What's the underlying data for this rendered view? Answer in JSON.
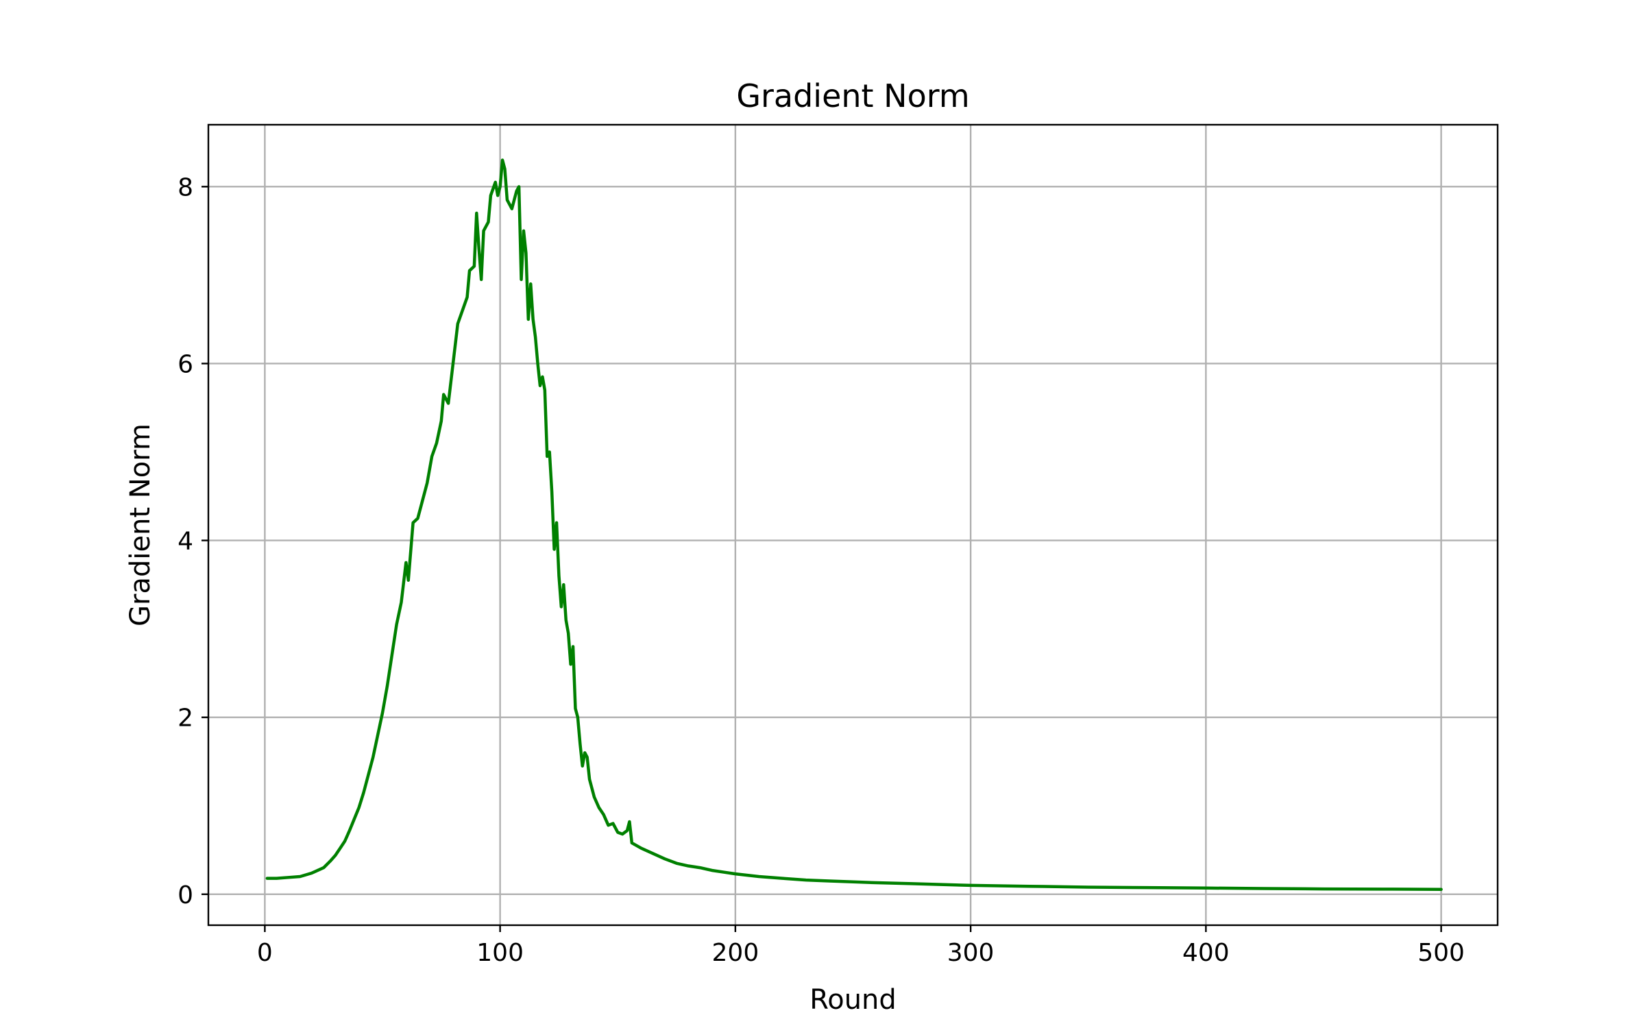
{
  "chart_data": {
    "type": "line",
    "title": "Gradient Norm",
    "xlabel": "Round",
    "ylabel": "Gradient Norm",
    "xlim": [
      -24,
      524
    ],
    "ylim": [
      -0.35,
      8.7
    ],
    "xticks": [
      0,
      100,
      200,
      300,
      400,
      500
    ],
    "yticks": [
      0,
      2,
      4,
      6,
      8
    ],
    "grid": true,
    "series": [
      {
        "color": "#008000",
        "points": [
          [
            1,
            0.18
          ],
          [
            5,
            0.18
          ],
          [
            10,
            0.19
          ],
          [
            15,
            0.2
          ],
          [
            20,
            0.24
          ],
          [
            25,
            0.3
          ],
          [
            28,
            0.38
          ],
          [
            30,
            0.44
          ],
          [
            32,
            0.52
          ],
          [
            34,
            0.6
          ],
          [
            36,
            0.72
          ],
          [
            38,
            0.85
          ],
          [
            40,
            0.98
          ],
          [
            42,
            1.15
          ],
          [
            44,
            1.35
          ],
          [
            46,
            1.55
          ],
          [
            48,
            1.8
          ],
          [
            50,
            2.05
          ],
          [
            52,
            2.35
          ],
          [
            54,
            2.7
          ],
          [
            56,
            3.05
          ],
          [
            58,
            3.3
          ],
          [
            60,
            3.75
          ],
          [
            61,
            3.55
          ],
          [
            63,
            4.2
          ],
          [
            65,
            4.25
          ],
          [
            67,
            4.45
          ],
          [
            69,
            4.65
          ],
          [
            71,
            4.95
          ],
          [
            73,
            5.1
          ],
          [
            75,
            5.35
          ],
          [
            76,
            5.65
          ],
          [
            78,
            5.55
          ],
          [
            80,
            6.0
          ],
          [
            82,
            6.45
          ],
          [
            84,
            6.6
          ],
          [
            86,
            6.75
          ],
          [
            87,
            7.05
          ],
          [
            89,
            7.1
          ],
          [
            90,
            7.7
          ],
          [
            91,
            7.3
          ],
          [
            92,
            6.95
          ],
          [
            93,
            7.5
          ],
          [
            95,
            7.6
          ],
          [
            96,
            7.9
          ],
          [
            98,
            8.05
          ],
          [
            99,
            7.9
          ],
          [
            100,
            8.0
          ],
          [
            101,
            8.3
          ],
          [
            102,
            8.2
          ],
          [
            103,
            7.85
          ],
          [
            105,
            7.75
          ],
          [
            106,
            7.85
          ],
          [
            107,
            7.95
          ],
          [
            108,
            8.0
          ],
          [
            109,
            6.95
          ],
          [
            110,
            7.5
          ],
          [
            111,
            7.25
          ],
          [
            112,
            6.5
          ],
          [
            113,
            6.9
          ],
          [
            114,
            6.5
          ],
          [
            115,
            6.3
          ],
          [
            116,
            6.0
          ],
          [
            117,
            5.75
          ],
          [
            118,
            5.85
          ],
          [
            119,
            5.7
          ],
          [
            120,
            4.95
          ],
          [
            121,
            5.0
          ],
          [
            122,
            4.55
          ],
          [
            123,
            3.9
          ],
          [
            124,
            4.2
          ],
          [
            125,
            3.6
          ],
          [
            126,
            3.25
          ],
          [
            127,
            3.5
          ],
          [
            128,
            3.1
          ],
          [
            129,
            2.95
          ],
          [
            130,
            2.6
          ],
          [
            131,
            2.8
          ],
          [
            132,
            2.1
          ],
          [
            133,
            2.0
          ],
          [
            134,
            1.7
          ],
          [
            135,
            1.45
          ],
          [
            136,
            1.6
          ],
          [
            137,
            1.55
          ],
          [
            138,
            1.3
          ],
          [
            140,
            1.1
          ],
          [
            142,
            0.98
          ],
          [
            144,
            0.9
          ],
          [
            146,
            0.78
          ],
          [
            148,
            0.8
          ],
          [
            150,
            0.7
          ],
          [
            152,
            0.68
          ],
          [
            154,
            0.72
          ],
          [
            155,
            0.82
          ],
          [
            156,
            0.58
          ],
          [
            158,
            0.55
          ],
          [
            160,
            0.52
          ],
          [
            165,
            0.46
          ],
          [
            170,
            0.4
          ],
          [
            175,
            0.35
          ],
          [
            180,
            0.32
          ],
          [
            185,
            0.3
          ],
          [
            190,
            0.27
          ],
          [
            195,
            0.25
          ],
          [
            200,
            0.23
          ],
          [
            210,
            0.2
          ],
          [
            220,
            0.18
          ],
          [
            230,
            0.16
          ],
          [
            240,
            0.15
          ],
          [
            250,
            0.14
          ],
          [
            260,
            0.13
          ],
          [
            275,
            0.12
          ],
          [
            300,
            0.1
          ],
          [
            325,
            0.09
          ],
          [
            350,
            0.08
          ],
          [
            375,
            0.075
          ],
          [
            400,
            0.07
          ],
          [
            425,
            0.065
          ],
          [
            450,
            0.06
          ],
          [
            475,
            0.058
          ],
          [
            500,
            0.055
          ]
        ]
      }
    ]
  }
}
